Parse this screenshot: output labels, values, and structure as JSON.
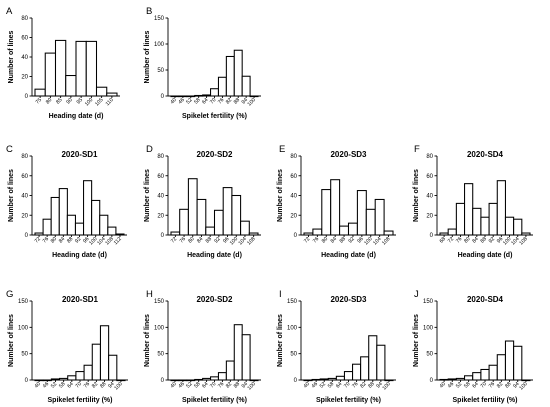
{
  "chart_data": [
    {
      "panel": "A",
      "type": "bar",
      "title": "",
      "xlabel": "Heading date (d)",
      "ylabel": "Number of lines",
      "ylim": [
        0,
        80
      ],
      "yticks": [
        0,
        20,
        40,
        60,
        80
      ],
      "categories": [
        "75",
        "80",
        "85",
        "90",
        "95",
        "100",
        "105",
        "110"
      ],
      "values": [
        7,
        44,
        57,
        21,
        56,
        56,
        9,
        3
      ]
    },
    {
      "panel": "B",
      "type": "bar",
      "title": "",
      "xlabel": "Spikelet fertility (%)",
      "ylabel": "Number of lines",
      "ylim": [
        0,
        150
      ],
      "yticks": [
        0,
        50,
        100,
        150
      ],
      "categories": [
        "40",
        "46",
        "52",
        "58",
        "64",
        "70",
        "76",
        "82",
        "88",
        "94",
        "100"
      ],
      "values": [
        0,
        0,
        0,
        1,
        2,
        14,
        36,
        76,
        88,
        38,
        0
      ]
    },
    {
      "panel": "C",
      "type": "bar",
      "title": "2020-SD1",
      "xlabel": "Heading date (d)",
      "ylabel": "Number of lines",
      "ylim": [
        0,
        80
      ],
      "yticks": [
        0,
        20,
        40,
        60,
        80
      ],
      "categories": [
        "72",
        "76",
        "80",
        "84",
        "88",
        "92",
        "96",
        "100",
        "104",
        "108",
        "112"
      ],
      "values": [
        2,
        16,
        38,
        47,
        20,
        12,
        55,
        35,
        20,
        8,
        1
      ]
    },
    {
      "panel": "D",
      "type": "bar",
      "title": "2020-SD2",
      "xlabel": "Heading date (d)",
      "ylabel": "Number of lines",
      "ylim": [
        0,
        80
      ],
      "yticks": [
        0,
        20,
        40,
        60,
        80
      ],
      "categories": [
        "72",
        "76",
        "80",
        "84",
        "88",
        "92",
        "96",
        "100",
        "104",
        "108"
      ],
      "values": [
        3,
        26,
        57,
        36,
        8,
        25,
        48,
        40,
        14,
        2
      ]
    },
    {
      "panel": "E",
      "type": "bar",
      "title": "2020-SD3",
      "xlabel": "Heading date (d)",
      "ylabel": "Number of lines",
      "ylim": [
        0,
        80
      ],
      "yticks": [
        0,
        20,
        40,
        60,
        80
      ],
      "categories": [
        "72",
        "76",
        "80",
        "84",
        "88",
        "92",
        "96",
        "100",
        "104",
        "108"
      ],
      "values": [
        2,
        6,
        46,
        56,
        9,
        12,
        45,
        26,
        36,
        4
      ]
    },
    {
      "panel": "F",
      "type": "bar",
      "title": "2020-SD4",
      "xlabel": "Heading date (d)",
      "ylabel": "Number of lines",
      "ylim": [
        0,
        80
      ],
      "yticks": [
        0,
        20,
        40,
        60,
        80
      ],
      "categories": [
        "68",
        "72",
        "76",
        "80",
        "84",
        "88",
        "92",
        "96",
        "100",
        "104",
        "108"
      ],
      "values": [
        2,
        6,
        32,
        52,
        27,
        18,
        32,
        55,
        18,
        16,
        2
      ]
    },
    {
      "panel": "G",
      "type": "bar",
      "title": "2020-SD1",
      "xlabel": "Spikelet fertility (%)",
      "ylabel": "Number of lines",
      "ylim": [
        0,
        150
      ],
      "yticks": [
        0,
        50,
        100,
        150
      ],
      "categories": [
        "40",
        "46",
        "52",
        "58",
        "64",
        "70",
        "76",
        "82",
        "88",
        "94",
        "100"
      ],
      "values": [
        0,
        0,
        2,
        3,
        8,
        16,
        28,
        68,
        103,
        47,
        0
      ]
    },
    {
      "panel": "H",
      "type": "bar",
      "title": "2020-SD2",
      "xlabel": "Spikelet fertility (%)",
      "ylabel": "Number of lines",
      "ylim": [
        0,
        150
      ],
      "yticks": [
        0,
        50,
        100,
        150
      ],
      "categories": [
        "40",
        "46",
        "52",
        "58",
        "64",
        "70",
        "76",
        "82",
        "88",
        "94",
        "100"
      ],
      "values": [
        0,
        0,
        0,
        1,
        3,
        6,
        14,
        36,
        105,
        86,
        0
      ]
    },
    {
      "panel": "I",
      "type": "bar",
      "title": "2020-SD3",
      "xlabel": "Spikelet fertility (%)",
      "ylabel": "Number of lines",
      "ylim": [
        0,
        150
      ],
      "yticks": [
        0,
        50,
        100,
        150
      ],
      "categories": [
        "40",
        "46",
        "52",
        "58",
        "64",
        "70",
        "76",
        "82",
        "88",
        "94",
        "100"
      ],
      "values": [
        0,
        1,
        2,
        3,
        7,
        16,
        30,
        44,
        84,
        66,
        0
      ]
    },
    {
      "panel": "J",
      "type": "bar",
      "title": "2020-SD4",
      "xlabel": "Spikelet fertility (%)",
      "ylabel": "Number of lines",
      "ylim": [
        0,
        150
      ],
      "yticks": [
        0,
        50,
        100,
        150
      ],
      "categories": [
        "40",
        "46",
        "52",
        "58",
        "64",
        "70",
        "76",
        "82",
        "88",
        "94",
        "100"
      ],
      "values": [
        1,
        2,
        3,
        8,
        14,
        20,
        28,
        48,
        74,
        64,
        0
      ]
    }
  ]
}
